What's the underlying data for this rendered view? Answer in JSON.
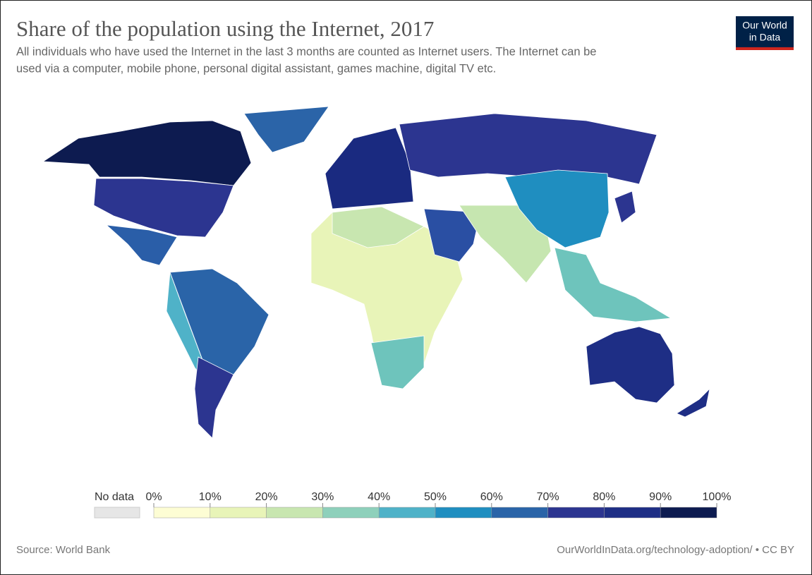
{
  "header": {
    "title": "Share of the population using the Internet, 2017",
    "subtitle": [
      "All individuals who have used the Internet in the last 3 months are counted as Internet users. The Internet can be",
      "used via a computer, mobile phone, personal digital assistant, games machine, digital TV etc."
    ],
    "logo": [
      "Our World",
      "in Data"
    ]
  },
  "legend": {
    "no_data": "No data",
    "ticks": [
      {
        "value": 0,
        "label": "0%"
      },
      {
        "value": 10,
        "label": "10%"
      },
      {
        "value": 20,
        "label": "20%"
      },
      {
        "value": 30,
        "label": "30%"
      },
      {
        "value": 40,
        "label": "40%"
      },
      {
        "value": 50,
        "label": "50%"
      },
      {
        "value": 60,
        "label": "60%"
      },
      {
        "value": 70,
        "label": "70%"
      },
      {
        "value": 80,
        "label": "80%"
      },
      {
        "value": 90,
        "label": "90%"
      },
      {
        "value": 100,
        "label": "100%"
      }
    ],
    "colors": [
      "#fdfdd4",
      "#e8f4b8",
      "#c8e6b0",
      "#8ed0bb",
      "#4fb2c8",
      "#1f8ec0",
      "#2a64a8",
      "#2c3590",
      "#1e2e85",
      "#0d1b50"
    ]
  },
  "footer": {
    "source": "Source: World Bank",
    "url": "OurWorldInData.org/technology-adoption/ • CC BY"
  }
}
